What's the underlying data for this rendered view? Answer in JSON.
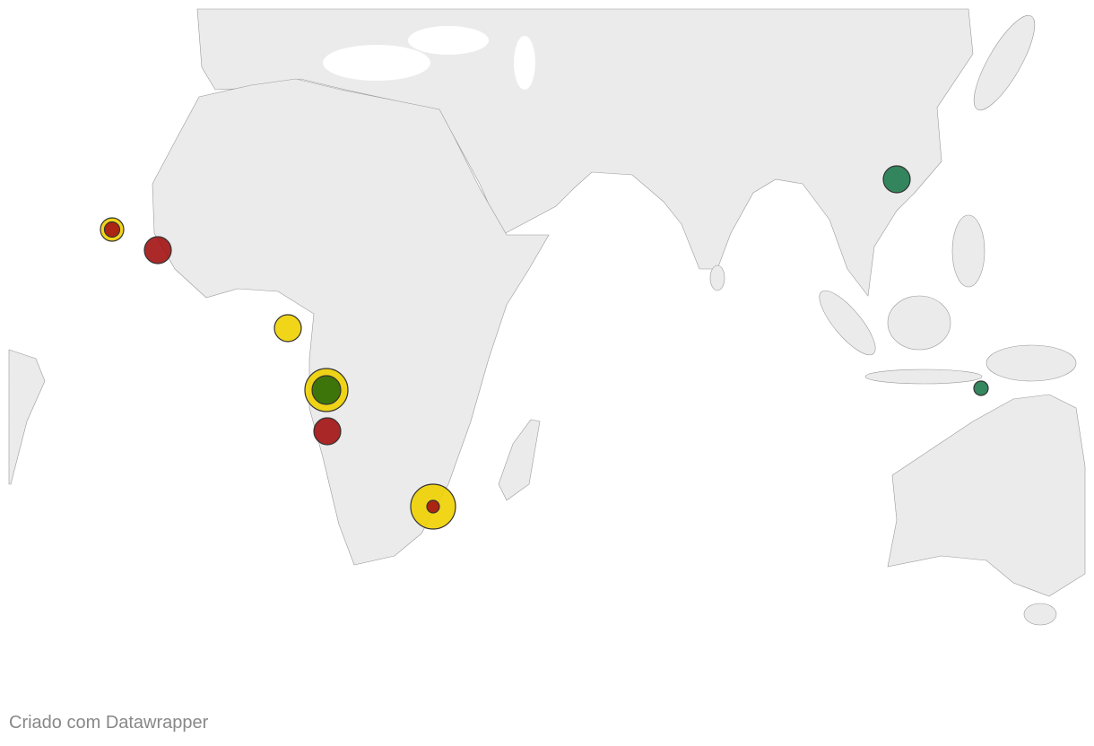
{
  "footer": {
    "credit": "Criado com Datawrapper"
  }
}
